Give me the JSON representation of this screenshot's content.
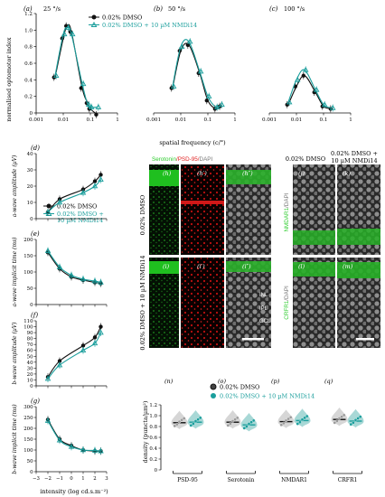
{
  "colors": {
    "black": "#111111",
    "teal": "#1a9e9c",
    "teal_light": "#a8d8d6",
    "gray": "#9a9a9a",
    "green": "#2ecc2e",
    "red": "#e02020"
  },
  "legend": {
    "ctrl": "0.02% DMSO",
    "treat": "0.02% DMSO + 10 µM NMDi14",
    "treat_line1": "0.02% DMSO +",
    "treat_line2": "10 µM NMDi14"
  },
  "top_panels": {
    "ylabel": "normalised optomotor index",
    "xlabel": "spatial frequency (c/°)",
    "xticks": [
      "0.001",
      "0.01",
      "0.1",
      "1"
    ],
    "yticks": [
      "0",
      "0.2",
      "0.4",
      "0.6",
      "0.8",
      "1.0",
      "1.2"
    ],
    "panels": [
      {
        "letter": "(a)",
        "speed": "25 °/s"
      },
      {
        "letter": "(b)",
        "speed": "50 °/s"
      },
      {
        "letter": "(c)",
        "speed": "100 °/s"
      }
    ]
  },
  "erg": {
    "xlabel": "intensity (log cd.s.m⁻²)",
    "xticks": [
      "−3",
      "−2",
      "−1",
      "0",
      "1",
      "2",
      "3"
    ],
    "panels": [
      {
        "letter": "(d)",
        "ylabel": "a-wave amplitude (µV)",
        "yticks": [
          "0",
          "10",
          "20",
          "30",
          "40"
        ]
      },
      {
        "letter": "(e)",
        "ylabel": "a-wave implicit time (ms)",
        "yticks": [
          "0",
          "50",
          "100",
          "150",
          "200"
        ]
      },
      {
        "letter": "(f)",
        "ylabel": "b-wave amplitude (µV)",
        "yticks": [
          "0",
          "10",
          "20",
          "30",
          "40",
          "50",
          "60",
          "70",
          "80",
          "90",
          "100",
          "110"
        ]
      },
      {
        "letter": "(g)",
        "ylabel": "b-wave implicit time (ms)",
        "yticks": [
          "0",
          "50",
          "100",
          "150",
          "200",
          "250",
          "300"
        ]
      }
    ]
  },
  "micro": {
    "stain_title": {
      "a": "Serotonin",
      "b": "/PSD-95/",
      "c": "DAPI"
    },
    "cols": [
      "(h)",
      "(h′)",
      "(h″)"
    ],
    "cols2": [
      "(i)",
      "(i′)",
      "(i″)"
    ],
    "row1_label": "0.02% DMSO",
    "row2_label": "0.02% DMSO + 10 µM NMDi14",
    "layers": [
      "INL",
      "IPL",
      "GCL"
    ],
    "right_head1": "0.02% DMSO",
    "right_head2": "0.02% DMSO +",
    "right_head3": "10 µM NMDi14",
    "right_letters": [
      "(j)",
      "(k)",
      "(l)",
      "(m)"
    ],
    "right_stain1": {
      "a": "NMDAR1",
      "b": "/DAPI"
    },
    "right_stain2": {
      "a": "CRFR1",
      "b": "/DAPI"
    }
  },
  "violin": {
    "ylabel": "density (puncta/µm²)",
    "yticks": [
      "0",
      "0.2",
      "0.4",
      "0.6",
      "0.8",
      "1.0",
      "1.2"
    ],
    "letters": [
      "(n)",
      "(o)",
      "(p)",
      "(q)"
    ],
    "groups": [
      "PSD-95",
      "Serotonin",
      "NMDAR1",
      "CRFR1"
    ]
  },
  "chart_data": [
    {
      "type": "line",
      "panel": "a",
      "title": "25 °/s",
      "xscale": "log",
      "xlim": [
        0.001,
        1
      ],
      "ylim": [
        0,
        1.2
      ],
      "x": [
        0.005,
        0.01,
        0.014,
        0.02,
        0.05,
        0.08,
        0.1,
        0.18
      ],
      "series": [
        {
          "name": "0.02% DMSO",
          "values": [
            0.43,
            0.9,
            1.05,
            0.98,
            0.3,
            0.12,
            0.05,
            -0.02
          ]
        },
        {
          "name": "0.02% DMSO + 10 µM NMDi14",
          "values": [
            0.45,
            0.95,
            1.03,
            0.95,
            0.35,
            0.1,
            0.07,
            0.07
          ]
        }
      ]
    },
    {
      "type": "line",
      "panel": "b",
      "title": "50 °/s",
      "xscale": "log",
      "xlim": [
        0.001,
        1
      ],
      "ylim": [
        0,
        1.2
      ],
      "x": [
        0.005,
        0.01,
        0.02,
        0.05,
        0.1,
        0.2,
        0.3
      ],
      "series": [
        {
          "name": "0.02% DMSO",
          "values": [
            0.3,
            0.75,
            0.82,
            0.48,
            0.15,
            0.05,
            0.08
          ]
        },
        {
          "name": "0.02% DMSO + 10 µM NMDi14",
          "values": [
            0.32,
            0.8,
            0.86,
            0.5,
            0.2,
            0.07,
            0.1
          ]
        }
      ]
    },
    {
      "type": "line",
      "panel": "c",
      "title": "100 °/s",
      "xscale": "log",
      "xlim": [
        0.001,
        1
      ],
      "ylim": [
        0,
        1.2
      ],
      "x": [
        0.005,
        0.01,
        0.02,
        0.05,
        0.1,
        0.2
      ],
      "series": [
        {
          "name": "0.02% DMSO",
          "values": [
            0.1,
            0.32,
            0.45,
            0.25,
            0.08,
            0.05
          ]
        },
        {
          "name": "0.02% DMSO + 10 µM NMDi14",
          "values": [
            0.13,
            0.4,
            0.52,
            0.28,
            0.1,
            0.06
          ]
        }
      ]
    },
    {
      "type": "line",
      "panel": "d",
      "xlim": [
        -3,
        3
      ],
      "ylim": [
        0,
        40
      ],
      "x": [
        -2,
        -1,
        1,
        2,
        2.5
      ],
      "series": [
        {
          "name": "0.02% DMSO",
          "values": [
            4,
            12,
            18,
            23,
            27
          ]
        },
        {
          "name": "0.02% DMSO + 10 µM NMDi14",
          "values": [
            4,
            10,
            16,
            20,
            24
          ]
        }
      ]
    },
    {
      "type": "line",
      "panel": "e",
      "xlim": [
        -3,
        3
      ],
      "ylim": [
        0,
        200
      ],
      "x": [
        -2,
        -1,
        0,
        1,
        2,
        2.5
      ],
      "series": [
        {
          "name": "0.02% DMSO",
          "values": [
            160,
            110,
            85,
            75,
            68,
            65
          ]
        },
        {
          "name": "0.02% DMSO + 10 µM NMDi14",
          "values": [
            165,
            115,
            90,
            78,
            72,
            68
          ]
        }
      ]
    },
    {
      "type": "line",
      "panel": "f",
      "xlim": [
        -3,
        3
      ],
      "ylim": [
        0,
        110
      ],
      "x": [
        -2,
        -1,
        1,
        2,
        2.5
      ],
      "series": [
        {
          "name": "0.02% DMSO",
          "values": [
            15,
            42,
            68,
            82,
            100
          ]
        },
        {
          "name": "0.02% DMSO + 10 µM NMDi14",
          "values": [
            12,
            35,
            60,
            72,
            90
          ]
        }
      ]
    },
    {
      "type": "line",
      "panel": "g",
      "xlim": [
        -3,
        3
      ],
      "ylim": [
        0,
        300
      ],
      "x": [
        -2,
        -1,
        0,
        1,
        2,
        2.5
      ],
      "series": [
        {
          "name": "0.02% DMSO",
          "values": [
            240,
            150,
            120,
            100,
            95,
            95
          ]
        },
        {
          "name": "0.02% DMSO + 10 µM NMDi14",
          "values": [
            235,
            145,
            115,
            100,
            98,
            95
          ]
        }
      ]
    },
    {
      "type": "violin",
      "panel": "n-q",
      "ylim": [
        0,
        1.2
      ],
      "categories": [
        "PSD-95",
        "Serotonin",
        "NMDAR1",
        "CRFR1"
      ],
      "series": [
        {
          "name": "0.02% DMSO",
          "values": [
            0.87,
            0.88,
            0.89,
            0.93
          ]
        },
        {
          "name": "0.02% DMSO + 10 µM NMDi14",
          "values": [
            0.88,
            0.83,
            0.91,
            0.9
          ]
        }
      ]
    }
  ]
}
